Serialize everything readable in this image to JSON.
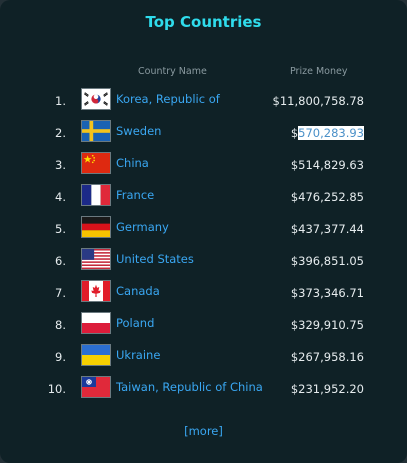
{
  "title": "Top Countries",
  "headers": {
    "country": "Country Name",
    "prize": "Prize Money"
  },
  "rows": [
    {
      "rank": "1.",
      "country": "Korea, Republic of",
      "prize": "$11,800,758.78",
      "flag": "korea-flag-icon"
    },
    {
      "rank": "2.",
      "country": "Sweden",
      "prize_prefix": "$",
      "prize_selected": "570,283.93",
      "flag": "sweden-flag-icon"
    },
    {
      "rank": "3.",
      "country": "China",
      "prize": "$514,829.63",
      "flag": "china-flag-icon"
    },
    {
      "rank": "4.",
      "country": "France",
      "prize": "$476,252.85",
      "flag": "france-flag-icon"
    },
    {
      "rank": "5.",
      "country": "Germany",
      "prize": "$437,377.44",
      "flag": "germany-flag-icon"
    },
    {
      "rank": "6.",
      "country": "United States",
      "prize": "$396,851.05",
      "flag": "usa-flag-icon"
    },
    {
      "rank": "7.",
      "country": "Canada",
      "prize": "$373,346.71",
      "flag": "canada-flag-icon"
    },
    {
      "rank": "8.",
      "country": "Poland",
      "prize": "$329,910.75",
      "flag": "poland-flag-icon"
    },
    {
      "rank": "9.",
      "country": "Ukraine",
      "prize": "$267,958.16",
      "flag": "ukraine-flag-icon"
    },
    {
      "rank": "10.",
      "country": "Taiwan, Republic of China",
      "prize": "$231,952.20",
      "flag": "taiwan-flag-icon"
    }
  ],
  "more_label": "[more]",
  "colors": {
    "background": "#0f2126",
    "title": "#2fdcec",
    "link": "#3aa7f2",
    "text": "#e6ecee",
    "header": "#8a9aa0"
  }
}
